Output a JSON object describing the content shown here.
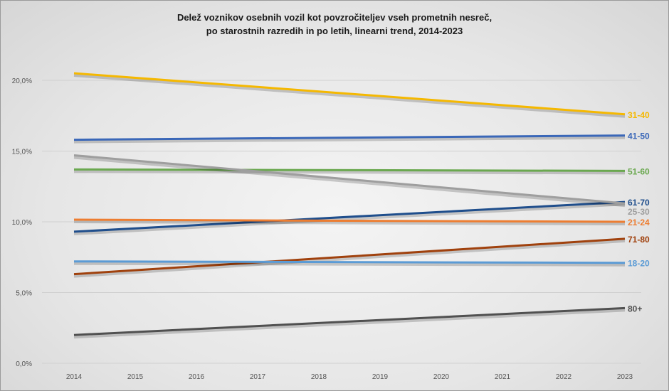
{
  "chart_data": {
    "type": "line",
    "title": "Delež voznikov osebnih vozil kot povzročiteljev vseh prometnih nesreč,",
    "subtitle": "po starostnih razredih in po letih, linearni trend, 2014-2023",
    "xlabel": "",
    "ylabel": "",
    "categories": [
      "2014",
      "2015",
      "2016",
      "2017",
      "2018",
      "2019",
      "2020",
      "2021",
      "2022",
      "2023"
    ],
    "ylim": [
      0,
      20
    ],
    "yticks": [
      "0,0%",
      "5,0%",
      "10,0%",
      "15,0%",
      "20,0%"
    ],
    "grid": true,
    "legend": "labels at line ends",
    "series": [
      {
        "name": "31-40",
        "start": 20.5,
        "end": 17.6,
        "color": "#f5b800"
      },
      {
        "name": "41-50",
        "start": 15.8,
        "end": 16.1,
        "color": "#3a67b8"
      },
      {
        "name": "51-60",
        "start": 13.7,
        "end": 13.6,
        "color": "#6aa84f"
      },
      {
        "name": "61-70",
        "start": 9.3,
        "end": 11.4,
        "color": "#1f4e8c"
      },
      {
        "name": "25-30",
        "start": 14.7,
        "end": 11.3,
        "color": "#9e9e9e"
      },
      {
        "name": "21-24",
        "start": 10.15,
        "end": 10.0,
        "color": "#ed7d31"
      },
      {
        "name": "71-80",
        "start": 6.3,
        "end": 8.8,
        "color": "#a0410d"
      },
      {
        "name": "18-20",
        "start": 7.2,
        "end": 7.1,
        "color": "#5b9bd5"
      },
      {
        "name": "80+",
        "start": 2.0,
        "end": 3.9,
        "color": "#505050"
      }
    ]
  }
}
